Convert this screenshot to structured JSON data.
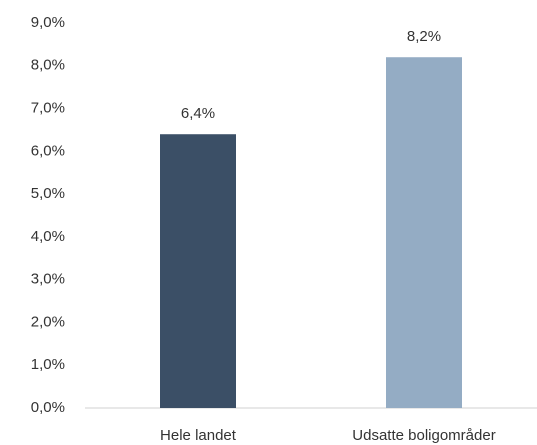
{
  "chart_data": {
    "type": "bar",
    "categories": [
      "Hele landet",
      "Udsatte boligområder"
    ],
    "values": [
      6.4,
      8.2
    ],
    "value_labels": [
      "6,4%",
      "8,2%"
    ],
    "colors": [
      "#3b4f66",
      "#94acc4"
    ],
    "ylim": [
      0,
      9
    ],
    "yticks": [
      {
        "value": 0,
        "label": "0,0%"
      },
      {
        "value": 1,
        "label": "1,0%"
      },
      {
        "value": 2,
        "label": "2,0%"
      },
      {
        "value": 3,
        "label": "3,0%"
      },
      {
        "value": 4,
        "label": "4,0%"
      },
      {
        "value": 5,
        "label": "5,0%"
      },
      {
        "value": 6,
        "label": "6,0%"
      },
      {
        "value": 7,
        "label": "7,0%"
      },
      {
        "value": 8,
        "label": "8,0%"
      },
      {
        "value": 9,
        "label": "9,0%"
      }
    ],
    "grid": false
  }
}
